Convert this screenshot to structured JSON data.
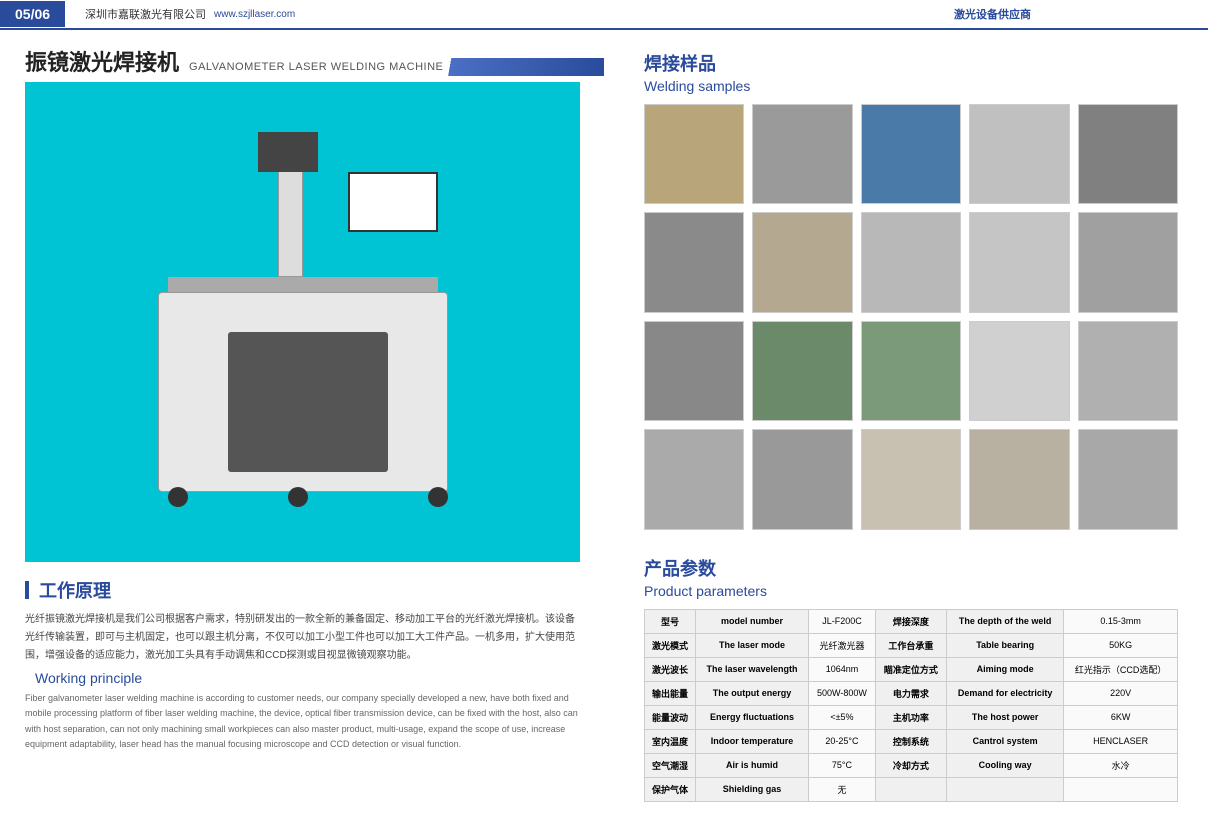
{
  "header": {
    "page_num": "05/06",
    "company": "深圳市嘉联激光有限公司",
    "website": "www.szjllaser.com",
    "supplier": "激光设备供应商"
  },
  "product_title": {
    "cn": "振镜激光焊接机",
    "en": "GALVANOMETER LASER WELDING MACHINE"
  },
  "colors": {
    "brand_blue": "#2a4b9b",
    "photo_bg": "#00c4d4",
    "accent_light": "#4a6fc4"
  },
  "working_principle": {
    "title_cn": "工作原理",
    "title_en": "Working principle",
    "body_cn": "光纤振镜激光焊接机是我们公司根据客户需求，特别研发出的一款全新的兼备固定、移动加工平台的光纤激光焊接机。该设备光纤传输装置，即可与主机固定，也可以跟主机分离，不仅可以加工小型工件也可以加工大工件产品。一机多用，扩大使用范围，增强设备的适应能力，激光加工头具有手动调焦和CCD探测或目视显微镜观察功能。",
    "body_en": "Fiber galvanometer laser welding machine is according to customer needs, our company specially developed a new, have both fixed and mobile processing platform of fiber laser welding machine, the device, optical fiber transmission device, can be fixed with the host, also can with host separation, can not only machining small workpieces can also master product, multi-usage, expand the scope of use, increase equipment adaptability, laser head has the manual focusing microscope and CCD detection or visual function."
  },
  "samples": {
    "title_cn": "焊接样品",
    "title_en": "Welding samples",
    "items": [
      "sample1",
      "sample2",
      "sample3",
      "sample4",
      "sample5",
      "sample6",
      "sample7",
      "sample8",
      "sample9",
      "sample10",
      "sample11",
      "sample12",
      "sample13",
      "sample14",
      "sample15",
      "sample16",
      "sample17",
      "sample18",
      "sample19",
      "sample20"
    ],
    "colors": [
      "#b8a67a",
      "#9a9a9a",
      "#4a7ba8",
      "#c0c0c0",
      "#808080",
      "#8a8a8a",
      "#b5a890",
      "#b8b8b8",
      "#c5c5c5",
      "#a0a0a0",
      "#888888",
      "#6a8a6a",
      "#7a9a7a",
      "#d0d0d0",
      "#b0b0b0",
      "#aaaaaa",
      "#999999",
      "#c8c0b0",
      "#b8b0a0",
      "#a8a8a8"
    ]
  },
  "params": {
    "title_cn": "产品参数",
    "title_en": "Product parameters",
    "rows": [
      [
        "型号",
        "model number",
        "JL-F200C",
        "焊接深度",
        "The depth of the weld",
        "0.15-3mm"
      ],
      [
        "激光模式",
        "The laser mode",
        "光纤激光器",
        "工作台承重",
        "Table bearing",
        "50KG"
      ],
      [
        "激光波长",
        "The laser wavelength",
        "1064nm",
        "瞄准定位方式",
        "Aiming mode",
        "红光指示（CCD选配）"
      ],
      [
        "输出能量",
        "The output energy",
        "500W-800W",
        "电力需求",
        "Demand for electricity",
        "220V"
      ],
      [
        "能量波动",
        "Energy fluctuations",
        "<±5%",
        "主机功率",
        "The host power",
        "6KW"
      ],
      [
        "室内温度",
        "Indoor temperature",
        "20-25°C",
        "控制系统",
        "Cantrol system",
        "HENCLASER"
      ],
      [
        "空气潮湿",
        "Air is humid",
        "75°C",
        "冷却方式",
        "Cooling way",
        "水冷"
      ],
      [
        "保护气体",
        "Shielding gas",
        "无",
        "",
        "",
        ""
      ]
    ]
  }
}
